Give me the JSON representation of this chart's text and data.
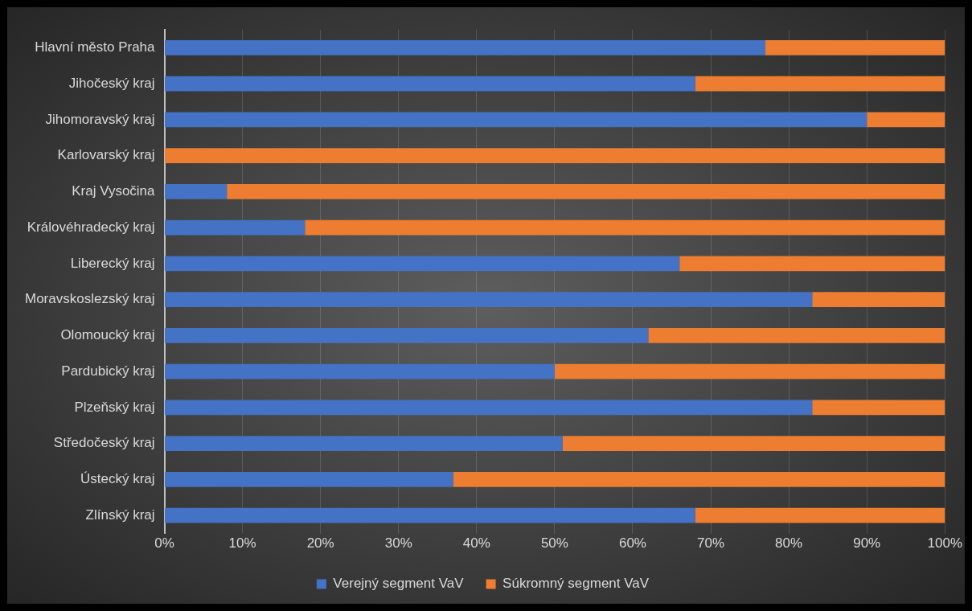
{
  "chart_data": {
    "type": "bar",
    "orientation": "horizontal",
    "stacked": true,
    "categories": [
      "Hlavní město Praha",
      "Jihočeský kraj",
      "Jihomoravský kraj",
      "Karlovarský kraj",
      "Kraj Vysočina",
      "Královéhradecký kraj",
      "Liberecký kraj",
      "Moravskoslezský kraj",
      "Olomoucký kraj",
      "Pardubický kraj",
      "Plzeňský kraj",
      "Středočeský kraj",
      "Ústecký kraj",
      "Zlínský kraj"
    ],
    "series": [
      {
        "name": "Verejný segment VaV",
        "color": "#4472c4",
        "values": [
          77,
          68,
          90,
          0,
          8,
          18,
          66,
          83,
          62,
          50,
          83,
          51,
          37,
          68
        ]
      },
      {
        "name": "Súkromný segment VaV",
        "color": "#ed7d31",
        "values": [
          23,
          32,
          10,
          100,
          92,
          82,
          34,
          17,
          38,
          50,
          17,
          49,
          63,
          32
        ]
      }
    ],
    "xlim": [
      0,
      100
    ],
    "xticks": [
      {
        "value": 0,
        "label": "0%"
      },
      {
        "value": 10,
        "label": "10%"
      },
      {
        "value": 20,
        "label": "20%"
      },
      {
        "value": 30,
        "label": "30%"
      },
      {
        "value": 40,
        "label": "40%"
      },
      {
        "value": 50,
        "label": "50%"
      },
      {
        "value": 60,
        "label": "60%"
      },
      {
        "value": 70,
        "label": "70%"
      },
      {
        "value": 80,
        "label": "80%"
      },
      {
        "value": 90,
        "label": "90%"
      },
      {
        "value": 100,
        "label": "100%"
      }
    ],
    "grid": "x",
    "legend": "bottom"
  }
}
